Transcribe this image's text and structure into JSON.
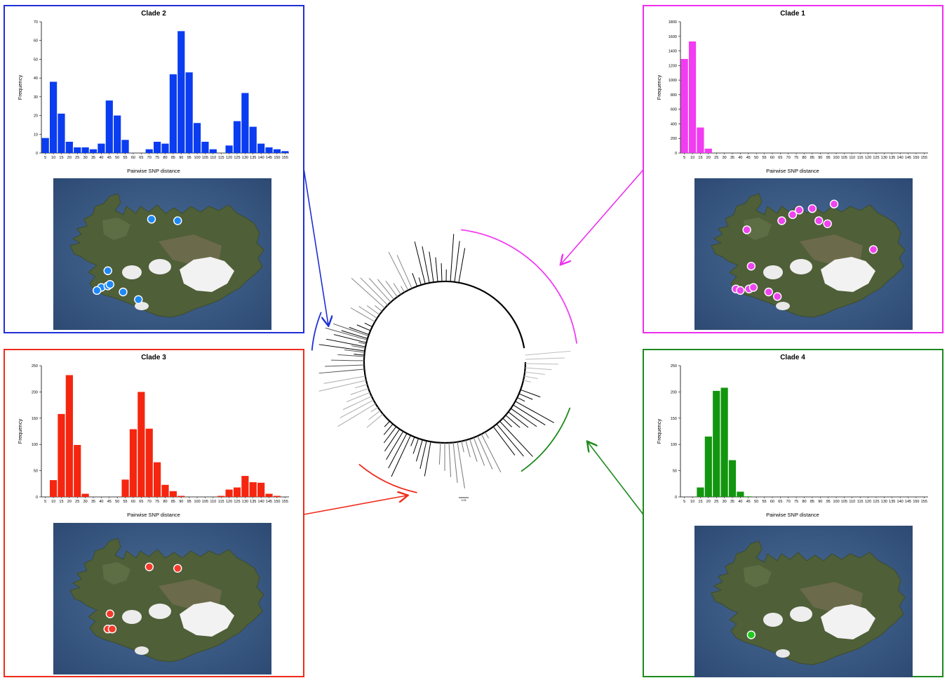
{
  "chart_data": [
    {
      "id": "clade2",
      "type": "bar",
      "title": "Clade 2",
      "xlabel": "Pairwise SNP distance",
      "ylabel": "Frequency",
      "color": "#0a3cf0",
      "border_color": "#1f2fd6",
      "ylim": [
        0,
        70
      ],
      "yticks": [
        0,
        10,
        20,
        30,
        40,
        50,
        60,
        70
      ],
      "categories": [
        "5",
        "10",
        "15",
        "20",
        "25",
        "30",
        "35",
        "40",
        "45",
        "50",
        "55",
        "60",
        "65",
        "70",
        "75",
        "80",
        "85",
        "90",
        "95",
        "100",
        "105",
        "110",
        "115",
        "120",
        "125",
        "130",
        "135",
        "140",
        "145",
        "150",
        "155"
      ],
      "values": [
        8,
        38,
        21,
        6,
        3,
        3,
        2,
        5,
        28,
        20,
        7,
        0,
        0,
        2,
        6,
        5,
        42,
        65,
        43,
        16,
        6,
        2,
        0,
        4,
        17,
        32,
        14,
        5,
        3,
        2,
        1
      ],
      "marker_color": "#1e88f5",
      "markers": [
        [
          0.45,
          0.27
        ],
        [
          0.57,
          0.28
        ],
        [
          0.25,
          0.61
        ],
        [
          0.22,
          0.72
        ],
        [
          0.25,
          0.71
        ],
        [
          0.26,
          0.7
        ],
        [
          0.2,
          0.74
        ],
        [
          0.32,
          0.75
        ],
        [
          0.39,
          0.8
        ]
      ]
    },
    {
      "id": "clade1",
      "type": "bar",
      "title": "Clade 1",
      "xlabel": "Pairwise SNP distance",
      "ylabel": "Frequency",
      "color": "#f23cf2",
      "border_color": "#ee2eee",
      "ylim": [
        0,
        1800
      ],
      "yticks": [
        0,
        200,
        400,
        600,
        800,
        1000,
        1200,
        1400,
        1600,
        1800
      ],
      "categories": [
        "5",
        "10",
        "15",
        "20",
        "25",
        "30",
        "35",
        "40",
        "45",
        "50",
        "55",
        "60",
        "65",
        "70",
        "75",
        "80",
        "85",
        "90",
        "95",
        "100",
        "105",
        "110",
        "115",
        "120",
        "125",
        "130",
        "135",
        "140",
        "145",
        "150",
        "155"
      ],
      "values": [
        1290,
        1530,
        350,
        60,
        0,
        0,
        0,
        0,
        0,
        0,
        0,
        0,
        0,
        0,
        0,
        0,
        0,
        0,
        0,
        0,
        0,
        0,
        0,
        0,
        0,
        0,
        0,
        0,
        0,
        0,
        0
      ],
      "marker_color": "#ee44ee",
      "markers": [
        [
          0.4,
          0.28
        ],
        [
          0.45,
          0.24
        ],
        [
          0.48,
          0.21
        ],
        [
          0.54,
          0.2
        ],
        [
          0.57,
          0.28
        ],
        [
          0.61,
          0.3
        ],
        [
          0.64,
          0.17
        ],
        [
          0.24,
          0.34
        ],
        [
          0.26,
          0.58
        ],
        [
          0.82,
          0.47
        ],
        [
          0.19,
          0.73
        ],
        [
          0.21,
          0.74
        ],
        [
          0.25,
          0.73
        ],
        [
          0.27,
          0.72
        ],
        [
          0.34,
          0.75
        ],
        [
          0.38,
          0.78
        ]
      ]
    },
    {
      "id": "clade3",
      "type": "bar",
      "title": "Clade 3",
      "xlabel": "Pairwise SNP distance",
      "ylabel": "Frequency",
      "color": "#f5260f",
      "border_color": "#ef2b1c",
      "ylim": [
        0,
        250
      ],
      "yticks": [
        0,
        50,
        100,
        150,
        200,
        250
      ],
      "categories": [
        "5",
        "10",
        "15",
        "20",
        "25",
        "30",
        "35",
        "40",
        "45",
        "50",
        "55",
        "60",
        "65",
        "70",
        "75",
        "80",
        "85",
        "90",
        "95",
        "100",
        "105",
        "110",
        "115",
        "120",
        "125",
        "130",
        "135",
        "140",
        "145",
        "150",
        "155"
      ],
      "values": [
        0,
        32,
        158,
        232,
        99,
        6,
        0,
        0,
        0,
        0,
        33,
        129,
        200,
        130,
        66,
        23,
        11,
        2,
        0,
        0,
        0,
        0,
        2,
        14,
        18,
        40,
        28,
        27,
        6,
        2,
        0
      ],
      "marker_color": "#f53a2a",
      "markers": [
        [
          0.44,
          0.29
        ],
        [
          0.57,
          0.3
        ],
        [
          0.26,
          0.6
        ],
        [
          0.25,
          0.7
        ],
        [
          0.27,
          0.7
        ]
      ]
    },
    {
      "id": "clade4",
      "type": "bar",
      "title": "Clade 4",
      "xlabel": "Pairwise SNP distance",
      "ylabel": "Frequency",
      "color": "#12960f",
      "border_color": "#1d8a1d",
      "ylim": [
        0,
        250
      ],
      "yticks": [
        0,
        50,
        100,
        150,
        200,
        250
      ],
      "categories": [
        "5",
        "10",
        "15",
        "20",
        "25",
        "30",
        "35",
        "40",
        "45",
        "50",
        "55",
        "60",
        "65",
        "70",
        "75",
        "80",
        "85",
        "90",
        "95",
        "100",
        "105",
        "110",
        "115",
        "120",
        "125",
        "130",
        "135",
        "140",
        "145",
        "150",
        "155"
      ],
      "values": [
        0,
        0,
        18,
        115,
        202,
        208,
        70,
        10,
        1,
        0,
        0,
        0,
        0,
        0,
        0,
        0,
        0,
        0,
        0,
        0,
        0,
        0,
        0,
        0,
        0,
        0,
        0,
        0,
        0,
        0,
        0
      ],
      "marker_color": "#1ecb1e",
      "markers": [
        [
          0.26,
          0.72
        ]
      ]
    }
  ],
  "tree": {
    "scale_label": "0.05",
    "clade_colors": {
      "clade1": "#f23cf2",
      "clade2": "#1f2fd6",
      "clade3": "#ef2b1c",
      "clade4": "#1d8a1d"
    }
  }
}
